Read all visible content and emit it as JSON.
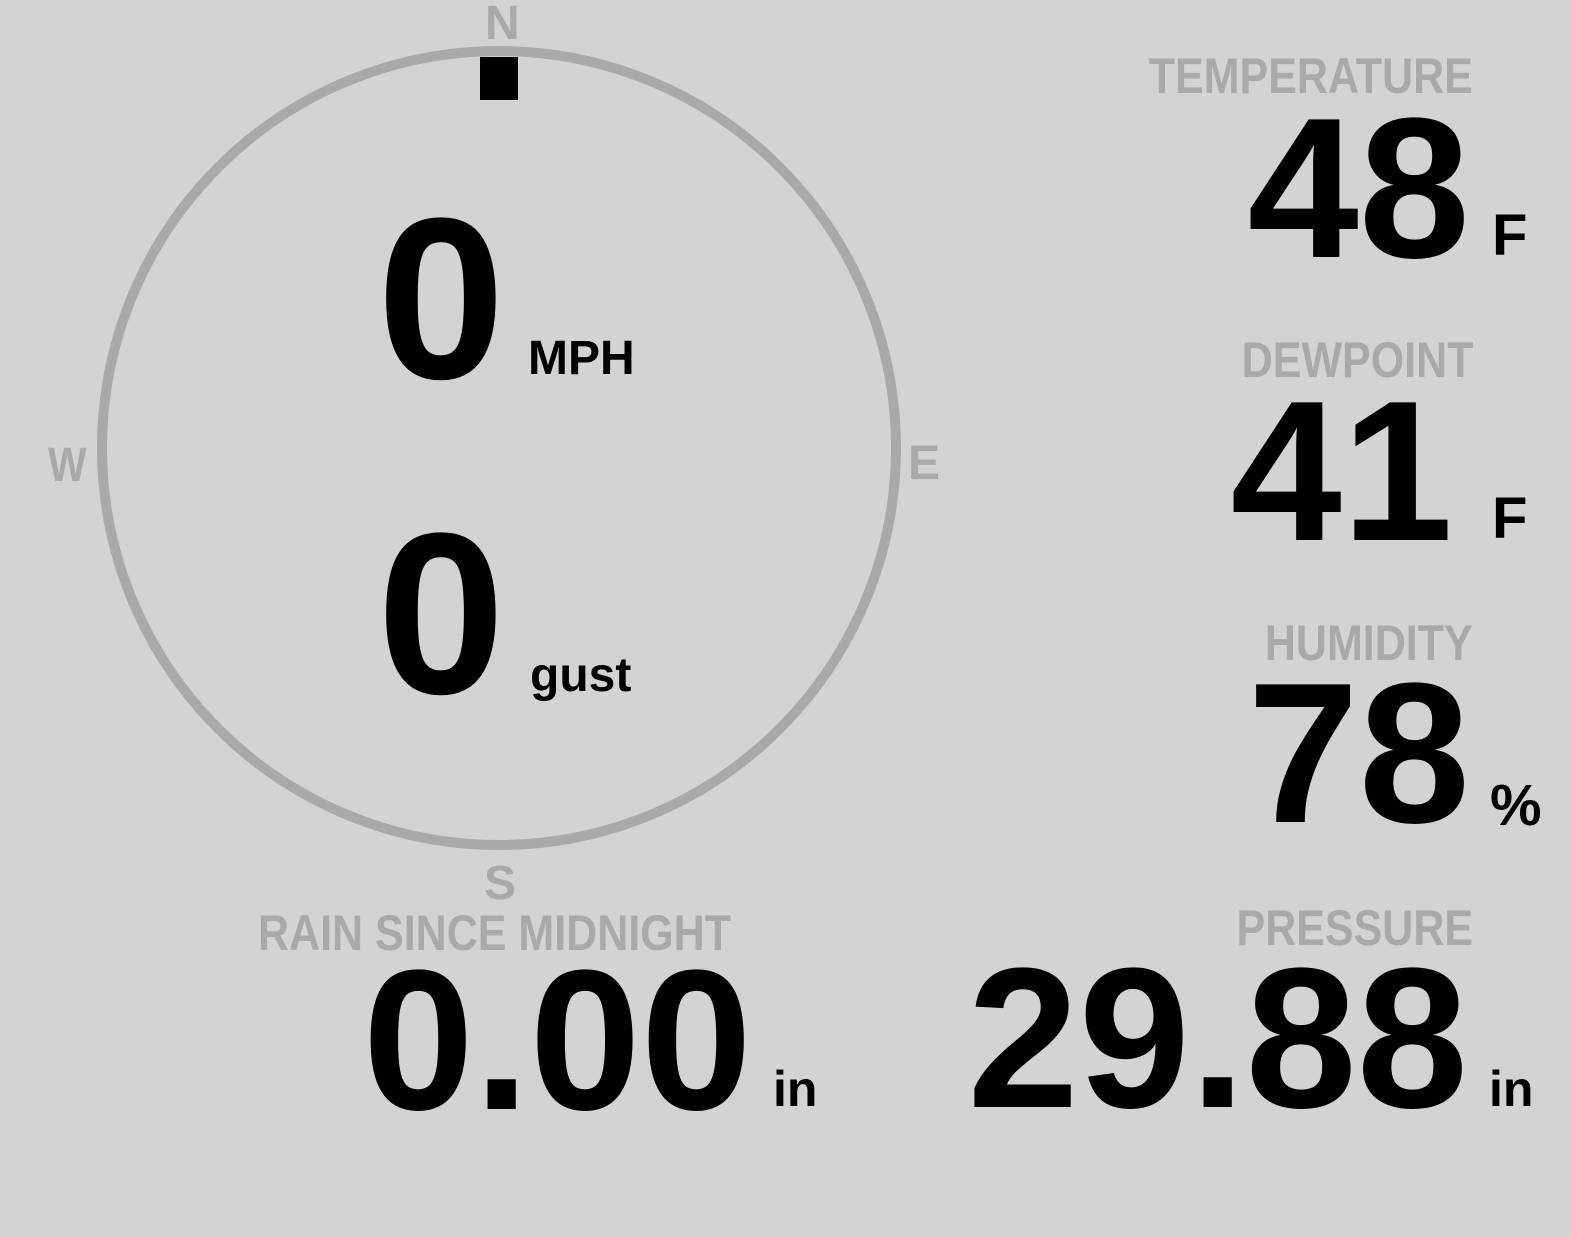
{
  "wind": {
    "compass": {
      "north": "N",
      "east": "E",
      "south": "S",
      "west": "W"
    },
    "direction_degrees": 0,
    "speed": "0",
    "speed_unit": "MPH",
    "gust": "0",
    "gust_unit": "gust"
  },
  "temperature": {
    "label": "TEMPERATURE",
    "value": "48",
    "unit": "F"
  },
  "dewpoint": {
    "label": "DEWPOINT",
    "value": "41",
    "unit": "F"
  },
  "humidity": {
    "label": "HUMIDITY",
    "value": "78",
    "unit": "%"
  },
  "rain": {
    "label": "RAIN SINCE MIDNIGHT",
    "value": "0.00",
    "unit": "in"
  },
  "pressure": {
    "label": "PRESSURE",
    "value": "29.88",
    "unit": "in"
  },
  "colors": {
    "background": "#d3d3d3",
    "label": "#a9a9a9",
    "value": "#000000"
  }
}
